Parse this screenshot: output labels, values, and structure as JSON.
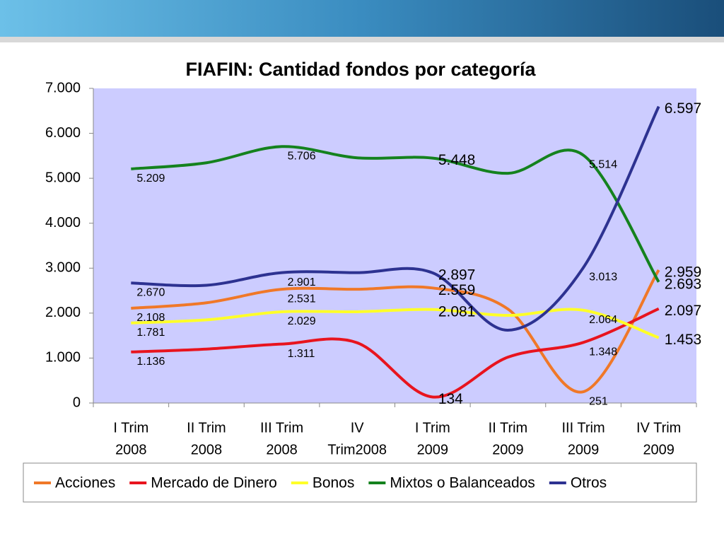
{
  "chart_data": {
    "type": "line",
    "title": "FIAFIN: Cantidad fondos por categoría",
    "categories": [
      [
        "I Trim",
        "2008"
      ],
      [
        "II Trim",
        "2008"
      ],
      [
        "III Trim",
        "2008"
      ],
      [
        "IV",
        "Trim2008"
      ],
      [
        "I Trim",
        "2009"
      ],
      [
        "II Trim",
        "2009"
      ],
      [
        "III Trim",
        "2009"
      ],
      [
        "IV Trim",
        "2009"
      ]
    ],
    "ylim": [
      0,
      7000
    ],
    "yticks": [
      0,
      {
        "value": 1000,
        "label": "1.000"
      },
      {
        "value": 2000,
        "label": "2.000"
      },
      {
        "value": 3000,
        "label": "3.000"
      },
      {
        "value": 4000,
        "label": "4.000"
      },
      {
        "value": 5000,
        "label": "5.000"
      },
      {
        "value": 6000,
        "label": "6.000"
      },
      {
        "value": 7000,
        "label": "7.000"
      }
    ],
    "plot_background": "#ccccff",
    "smooth": true,
    "series": [
      {
        "name": "Acciones",
        "color": "#f07828",
        "values": [
          2108,
          2230,
          2531,
          2530,
          2559,
          2090,
          251,
          2959
        ],
        "value_labels": [
          "2.108",
          null,
          "2.531",
          null,
          "2.559",
          null,
          "251",
          "2.959"
        ]
      },
      {
        "name": "Mercado de Dinero",
        "color": "#e8141e",
        "values": [
          1136,
          1200,
          1311,
          1340,
          134,
          1020,
          1348,
          2097
        ],
        "value_labels": [
          "1.136",
          null,
          "1.311",
          null,
          "134",
          null,
          "1.348",
          "2.097"
        ]
      },
      {
        "name": "Bonos",
        "color": "#ffff28",
        "values": [
          1781,
          1850,
          2029,
          2030,
          2081,
          1950,
          2064,
          1453
        ],
        "value_labels": [
          "1.781",
          null,
          "2.029",
          null,
          "2.081",
          null,
          "2.064",
          "1.453"
        ]
      },
      {
        "name": "Mixtos o Balanceados",
        "color": "#14821e",
        "values": [
          5209,
          5345,
          5706,
          5455,
          5448,
          5110,
          5514,
          2693
        ],
        "value_labels": [
          "5.209",
          null,
          "5.706",
          null,
          "5.448",
          null,
          "5.514",
          "2.693"
        ]
      },
      {
        "name": "Otros",
        "color": "#2d3291",
        "values": [
          2670,
          2620,
          2901,
          2900,
          2897,
          1620,
          3013,
          6597
        ],
        "value_labels": [
          "2.670",
          null,
          "2.901",
          null,
          "2.897",
          null,
          "3.013",
          "6.597"
        ]
      }
    ]
  }
}
